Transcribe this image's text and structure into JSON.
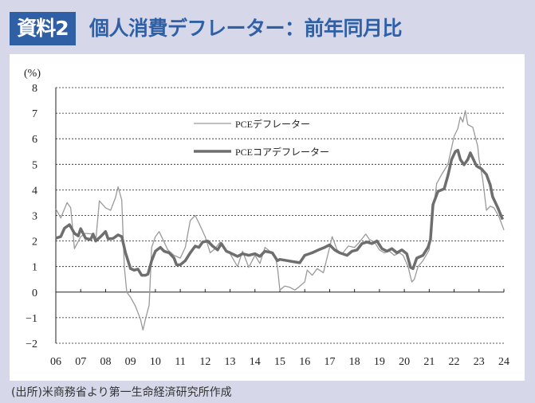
{
  "header": {
    "badge": "資料2",
    "title": "個人消費デフレーター：前年同月比"
  },
  "footer": {
    "source": "(出所)米商務省より第一生命経済研究所作成"
  },
  "chart_data": {
    "type": "line",
    "title": "個人消費デフレーター：前年同月比",
    "ylabel": "(%)",
    "xlabel": "",
    "ylim": [
      -2,
      8
    ],
    "yticks": [
      "8",
      "7",
      "6",
      "5",
      "4",
      "3",
      "2",
      "1",
      "0",
      "−1",
      "−2"
    ],
    "xlim": [
      2006,
      2024
    ],
    "xtick_labels": [
      "06",
      "07",
      "08",
      "09",
      "10",
      "11",
      "12",
      "13",
      "14",
      "15",
      "16",
      "17",
      "18",
      "19",
      "20",
      "21",
      "22",
      "23",
      "24"
    ],
    "grid": "horizontal dashed",
    "legend_placement": "top-center",
    "colors": {
      "headline": "#9a9a9a",
      "core": "#6e6e6e",
      "accent": "#2f5fa4"
    },
    "series": [
      {
        "name": "PCEデフレーター",
        "points": [
          [
            2006.0,
            3.26
          ],
          [
            2006.2,
            2.9
          ],
          [
            2006.45,
            3.5
          ],
          [
            2006.6,
            3.3
          ],
          [
            2006.75,
            1.7
          ],
          [
            2007.0,
            2.17
          ],
          [
            2007.2,
            2.3
          ],
          [
            2007.5,
            2.27
          ],
          [
            2007.6,
            1.96
          ],
          [
            2007.75,
            3.57
          ],
          [
            2008.0,
            3.3
          ],
          [
            2008.2,
            3.2
          ],
          [
            2008.4,
            3.7
          ],
          [
            2008.5,
            4.12
          ],
          [
            2008.65,
            3.6
          ],
          [
            2008.75,
            1.0
          ],
          [
            2008.85,
            0.0
          ],
          [
            2009.0,
            -0.2
          ],
          [
            2009.2,
            -0.55
          ],
          [
            2009.4,
            -1.06
          ],
          [
            2009.5,
            -1.48
          ],
          [
            2009.6,
            -1.06
          ],
          [
            2009.75,
            -0.5
          ],
          [
            2009.85,
            1.75
          ],
          [
            2010.0,
            2.17
          ],
          [
            2010.15,
            2.37
          ],
          [
            2010.3,
            2.06
          ],
          [
            2010.5,
            1.65
          ],
          [
            2010.75,
            1.44
          ],
          [
            2011.0,
            1.33
          ],
          [
            2011.2,
            1.75
          ],
          [
            2011.4,
            2.8
          ],
          [
            2011.6,
            3.0
          ],
          [
            2011.75,
            2.7
          ],
          [
            2012.0,
            2.17
          ],
          [
            2012.2,
            1.54
          ],
          [
            2012.4,
            1.7
          ],
          [
            2012.6,
            1.96
          ],
          [
            2012.8,
            1.65
          ],
          [
            2013.0,
            1.5
          ],
          [
            2013.3,
            1.0
          ],
          [
            2013.5,
            1.6
          ],
          [
            2013.75,
            0.97
          ],
          [
            2014.0,
            1.44
          ],
          [
            2014.2,
            1.12
          ],
          [
            2014.4,
            1.75
          ],
          [
            2014.6,
            1.6
          ],
          [
            2014.8,
            1.44
          ],
          [
            2014.9,
            1.0
          ],
          [
            2015.0,
            0.08
          ],
          [
            2015.2,
            0.24
          ],
          [
            2015.4,
            0.19
          ],
          [
            2015.6,
            0.08
          ],
          [
            2015.75,
            0.19
          ],
          [
            2016.0,
            0.4
          ],
          [
            2016.1,
            0.86
          ],
          [
            2016.3,
            0.66
          ],
          [
            2016.5,
            0.92
          ],
          [
            2016.75,
            0.76
          ],
          [
            2017.0,
            1.75
          ],
          [
            2017.1,
            2.17
          ],
          [
            2017.3,
            1.65
          ],
          [
            2017.5,
            1.5
          ],
          [
            2017.75,
            1.8
          ],
          [
            2018.0,
            1.75
          ],
          [
            2018.2,
            1.96
          ],
          [
            2018.45,
            2.27
          ],
          [
            2018.6,
            2.06
          ],
          [
            2018.8,
            1.96
          ],
          [
            2019.0,
            1.65
          ],
          [
            2019.2,
            1.54
          ],
          [
            2019.4,
            1.6
          ],
          [
            2019.6,
            1.44
          ],
          [
            2019.8,
            1.54
          ],
          [
            2019.95,
            1.44
          ],
          [
            2020.15,
            1.0
          ],
          [
            2020.3,
            0.4
          ],
          [
            2020.4,
            0.5
          ],
          [
            2020.55,
            1.0
          ],
          [
            2020.75,
            1.23
          ],
          [
            2021.0,
            1.65
          ],
          [
            2021.15,
            3.1
          ],
          [
            2021.3,
            4.25
          ],
          [
            2021.5,
            4.6
          ],
          [
            2021.75,
            5.0
          ],
          [
            2022.0,
            6.1
          ],
          [
            2022.15,
            6.4
          ],
          [
            2022.25,
            6.85
          ],
          [
            2022.35,
            6.65
          ],
          [
            2022.45,
            7.1
          ],
          [
            2022.55,
            6.55
          ],
          [
            2022.75,
            6.45
          ],
          [
            2022.95,
            5.7
          ],
          [
            2023.0,
            5.2
          ],
          [
            2023.15,
            4.4
          ],
          [
            2023.3,
            3.2
          ],
          [
            2023.45,
            3.36
          ],
          [
            2023.6,
            3.3
          ],
          [
            2023.8,
            2.95
          ],
          [
            2024.0,
            2.43
          ]
        ]
      },
      {
        "name": "PCEコアデフレーター",
        "points": [
          [
            2006.0,
            2.11
          ],
          [
            2006.2,
            2.17
          ],
          [
            2006.35,
            2.5
          ],
          [
            2006.55,
            2.64
          ],
          [
            2006.75,
            2.3
          ],
          [
            2006.9,
            2.2
          ],
          [
            2007.0,
            2.48
          ],
          [
            2007.2,
            2.1
          ],
          [
            2007.4,
            2.06
          ],
          [
            2007.5,
            2.27
          ],
          [
            2007.6,
            2.0
          ],
          [
            2007.8,
            2.17
          ],
          [
            2008.0,
            2.37
          ],
          [
            2008.1,
            2.08
          ],
          [
            2008.3,
            2.1
          ],
          [
            2008.5,
            2.24
          ],
          [
            2008.65,
            2.17
          ],
          [
            2008.8,
            1.54
          ],
          [
            2009.0,
            0.92
          ],
          [
            2009.15,
            0.86
          ],
          [
            2009.3,
            0.9
          ],
          [
            2009.45,
            0.66
          ],
          [
            2009.6,
            0.66
          ],
          [
            2009.7,
            0.7
          ],
          [
            2009.85,
            1.23
          ],
          [
            2010.0,
            1.6
          ],
          [
            2010.2,
            1.75
          ],
          [
            2010.35,
            1.6
          ],
          [
            2010.55,
            1.54
          ],
          [
            2010.75,
            1.33
          ],
          [
            2010.85,
            1.07
          ],
          [
            2011.0,
            1.07
          ],
          [
            2011.2,
            1.23
          ],
          [
            2011.4,
            1.54
          ],
          [
            2011.6,
            1.8
          ],
          [
            2011.75,
            1.75
          ],
          [
            2011.9,
            1.96
          ],
          [
            2012.1,
            2.0
          ],
          [
            2012.3,
            1.8
          ],
          [
            2012.5,
            1.65
          ],
          [
            2012.65,
            1.9
          ],
          [
            2012.85,
            1.6
          ],
          [
            2013.0,
            1.54
          ],
          [
            2013.3,
            1.4
          ],
          [
            2013.5,
            1.5
          ],
          [
            2013.75,
            1.44
          ],
          [
            2014.0,
            1.5
          ],
          [
            2014.2,
            1.4
          ],
          [
            2014.4,
            1.6
          ],
          [
            2014.7,
            1.54
          ],
          [
            2014.9,
            1.23
          ],
          [
            2015.0,
            1.28
          ],
          [
            2015.3,
            1.23
          ],
          [
            2015.6,
            1.18
          ],
          [
            2015.8,
            1.15
          ],
          [
            2016.0,
            1.44
          ],
          [
            2016.3,
            1.54
          ],
          [
            2016.55,
            1.65
          ],
          [
            2016.8,
            1.75
          ],
          [
            2017.0,
            1.85
          ],
          [
            2017.2,
            1.65
          ],
          [
            2017.4,
            1.54
          ],
          [
            2017.7,
            1.44
          ],
          [
            2017.9,
            1.6
          ],
          [
            2018.1,
            1.65
          ],
          [
            2018.3,
            1.9
          ],
          [
            2018.5,
            1.96
          ],
          [
            2018.7,
            1.9
          ],
          [
            2018.9,
            2.0
          ],
          [
            2019.1,
            1.7
          ],
          [
            2019.3,
            1.6
          ],
          [
            2019.5,
            1.7
          ],
          [
            2019.7,
            1.54
          ],
          [
            2019.9,
            1.65
          ],
          [
            2020.1,
            1.5
          ],
          [
            2020.25,
            0.97
          ],
          [
            2020.35,
            0.92
          ],
          [
            2020.5,
            1.33
          ],
          [
            2020.75,
            1.44
          ],
          [
            2020.95,
            1.75
          ],
          [
            2021.05,
            2.06
          ],
          [
            2021.15,
            3.42
          ],
          [
            2021.35,
            3.94
          ],
          [
            2021.6,
            4.04
          ],
          [
            2021.75,
            4.56
          ],
          [
            2021.9,
            5.19
          ],
          [
            2022.05,
            5.5
          ],
          [
            2022.15,
            5.55
          ],
          [
            2022.25,
            5.19
          ],
          [
            2022.4,
            4.98
          ],
          [
            2022.55,
            5.19
          ],
          [
            2022.65,
            5.45
          ],
          [
            2022.75,
            5.24
          ],
          [
            2022.9,
            4.93
          ],
          [
            2023.1,
            4.82
          ],
          [
            2023.3,
            4.6
          ],
          [
            2023.45,
            4.2
          ],
          [
            2023.55,
            3.73
          ],
          [
            2023.75,
            3.31
          ],
          [
            2023.95,
            2.84
          ]
        ]
      }
    ]
  }
}
